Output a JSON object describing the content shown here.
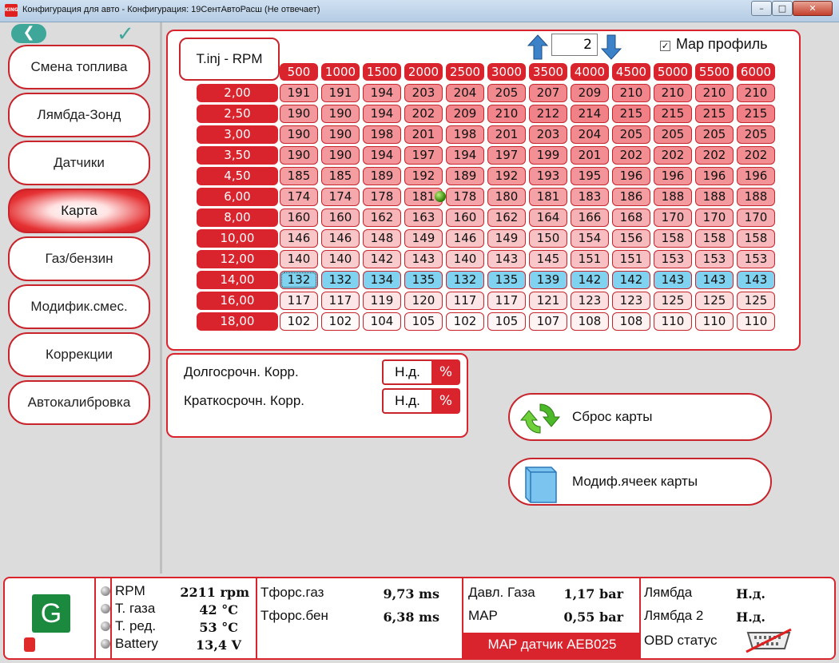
{
  "window": {
    "title": "Конфигурация для авто - Конфигурация: 19СентАвтоРасш (Не отвечает)",
    "app_icon_text": "KING",
    "min_label": "–",
    "max_label": "□",
    "close_label": "✕"
  },
  "nav": {
    "back_label": "❮",
    "check_label": "✓",
    "items": [
      {
        "label": "Смена топлива"
      },
      {
        "label": "Лямбда-Зонд"
      },
      {
        "label": "Датчики"
      },
      {
        "label": "Карта",
        "active": true
      },
      {
        "label": "Газ/бензин"
      },
      {
        "label": "Модифик.смес."
      },
      {
        "label": "Коррекции"
      },
      {
        "label": "Автокалибровка"
      }
    ]
  },
  "map": {
    "label": "T.inj - RPM",
    "profile_number": "2",
    "map_profile_checked": true,
    "map_profile_label": "Map профиль",
    "rpm": [
      "500",
      "1000",
      "1500",
      "2000",
      "2500",
      "3000",
      "3500",
      "4000",
      "4500",
      "5000",
      "5500",
      "6000"
    ],
    "tinj": [
      "2,00",
      "2,50",
      "3,00",
      "3,50",
      "4,50",
      "6,00",
      "8,00",
      "10,00",
      "12,00",
      "14,00",
      "16,00",
      "18,00"
    ],
    "values": [
      [
        "191",
        "191",
        "194",
        "203",
        "204",
        "205",
        "207",
        "209",
        "210",
        "210",
        "210",
        "210"
      ],
      [
        "190",
        "190",
        "194",
        "202",
        "209",
        "210",
        "212",
        "214",
        "215",
        "215",
        "215",
        "215"
      ],
      [
        "190",
        "190",
        "198",
        "201",
        "198",
        "201",
        "203",
        "204",
        "205",
        "205",
        "205",
        "205"
      ],
      [
        "190",
        "190",
        "194",
        "197",
        "194",
        "197",
        "199",
        "201",
        "202",
        "202",
        "202",
        "202"
      ],
      [
        "185",
        "185",
        "189",
        "192",
        "189",
        "192",
        "193",
        "195",
        "196",
        "196",
        "196",
        "196"
      ],
      [
        "174",
        "174",
        "178",
        "181",
        "178",
        "180",
        "181",
        "183",
        "186",
        "188",
        "188",
        "188"
      ],
      [
        "160",
        "160",
        "162",
        "163",
        "160",
        "162",
        "164",
        "166",
        "168",
        "170",
        "170",
        "170"
      ],
      [
        "146",
        "146",
        "148",
        "149",
        "146",
        "149",
        "150",
        "154",
        "156",
        "158",
        "158",
        "158"
      ],
      [
        "140",
        "140",
        "142",
        "143",
        "140",
        "143",
        "145",
        "151",
        "151",
        "153",
        "153",
        "153"
      ],
      [
        "132",
        "132",
        "134",
        "135",
        "132",
        "135",
        "139",
        "142",
        "142",
        "143",
        "143",
        "143"
      ],
      [
        "117",
        "117",
        "119",
        "120",
        "117",
        "117",
        "121",
        "123",
        "123",
        "125",
        "125",
        "125"
      ],
      [
        "102",
        "102",
        "104",
        "105",
        "102",
        "105",
        "107",
        "108",
        "108",
        "110",
        "110",
        "110"
      ]
    ],
    "highlight_row_index": 9,
    "selected_cell": [
      9,
      0
    ],
    "marker_cell": [
      5,
      3
    ]
  },
  "corrections": {
    "long_term_label": "Долгосрочн. Корр.",
    "long_term_value": "Н.д.",
    "short_term_label": "Краткосрочн. Корр.",
    "short_term_value": "Н.д.",
    "unit": "%"
  },
  "actions": {
    "reset_map_label": "Сброс карты",
    "modify_cells_label": "Модиф.ячеек карты"
  },
  "status": {
    "fuel_badge": "G",
    "rpm_label": "RPM",
    "rpm_value": "2211 rpm",
    "gas_temp_label": "Т. газа",
    "gas_temp_value": "42 °C",
    "reducer_temp_label": "Т. ред.",
    "reducer_temp_value": "53 °C",
    "battery_label": "Battery",
    "battery_value": "13,4 V",
    "inj_gas_label": "Тфорс.газ",
    "inj_gas_value": "9,73 ms",
    "inj_petrol_label": "Тфорс.бен",
    "inj_petrol_value": "6,38 ms",
    "gas_pressure_label": "Давл. Газа",
    "gas_pressure_value": "1,17 bar",
    "map_label": "MAP",
    "map_value": "0,55 bar",
    "map_sensor_label": "MAP датчик AEB025",
    "lambda_label": "Лямбда",
    "lambda_value": "Н.д.",
    "lambda2_label": "Лямбда 2",
    "lambda2_value": "Н.д.",
    "obd_label": "OBD статус"
  },
  "colors": {
    "accent_red": "#d9232d",
    "highlight_blue": "#7fd2f0",
    "fuel_green": "#1b8a3f",
    "teal": "#3ea79a"
  }
}
